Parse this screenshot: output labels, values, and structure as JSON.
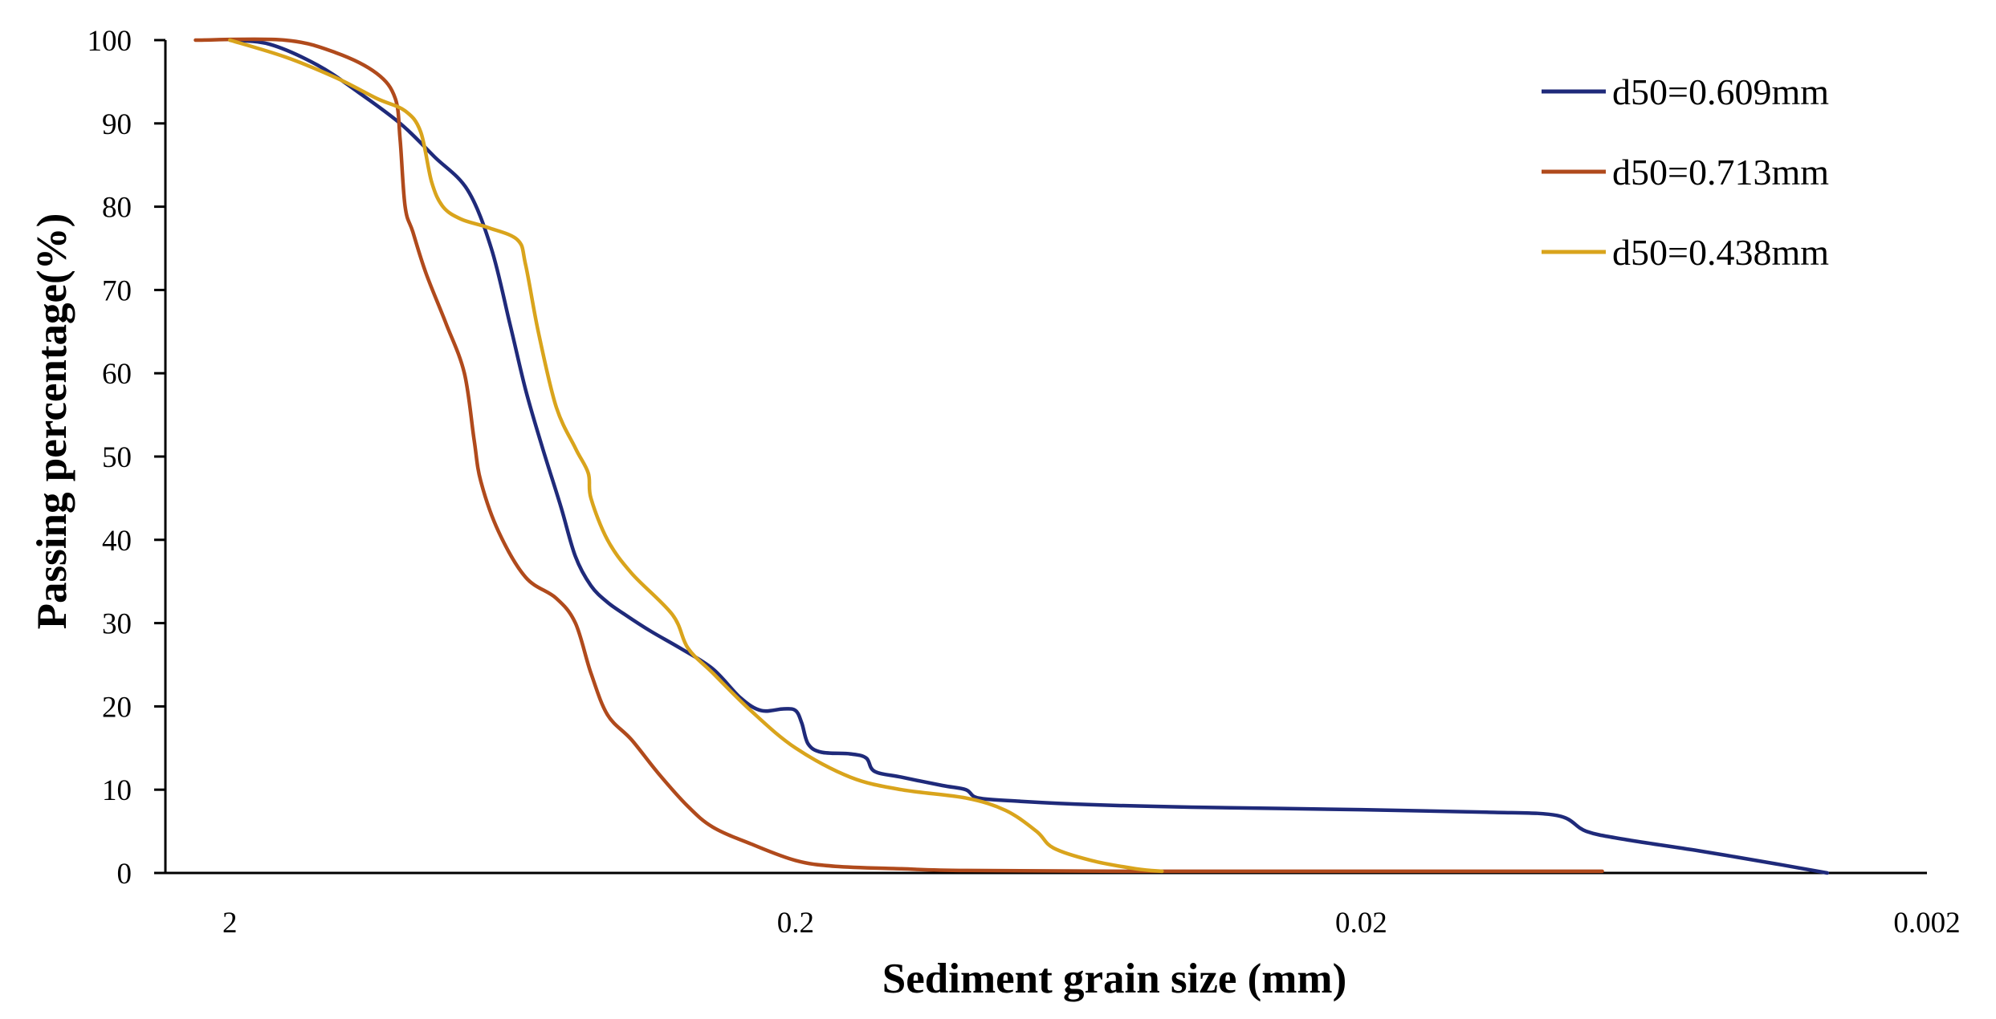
{
  "chart_data": {
    "type": "line",
    "title": "",
    "xlabel": "Sediment grain size (mm)",
    "ylabel": "Passing percentage(%)",
    "x_scale": "log",
    "x_reversed": true,
    "xlim": [
      2.6,
      0.002
    ],
    "ylim": [
      0,
      100
    ],
    "x_ticks": [
      2,
      0.2,
      0.02,
      0.002
    ],
    "x_tick_labels": [
      "2",
      "0.2",
      "0.02",
      "0.002"
    ],
    "y_ticks": [
      0,
      10,
      20,
      30,
      40,
      50,
      60,
      70,
      80,
      90,
      100
    ],
    "y_tick_labels": [
      "0",
      "10",
      "20",
      "30",
      "40",
      "50",
      "60",
      "70",
      "80",
      "90",
      "100"
    ],
    "grid": false,
    "legend_position": "top-right",
    "series": [
      {
        "name": "d50=0.609mm",
        "color": "#1f2a7a",
        "points": [
          [
            2.0,
            100
          ],
          [
            1.7,
            99.5
          ],
          [
            1.4,
            97
          ],
          [
            1.2,
            94
          ],
          [
            1.0,
            90
          ],
          [
            0.87,
            86
          ],
          [
            0.76,
            82
          ],
          [
            0.69,
            75
          ],
          [
            0.64,
            66
          ],
          [
            0.6,
            58
          ],
          [
            0.56,
            51
          ],
          [
            0.52,
            44
          ],
          [
            0.49,
            38
          ],
          [
            0.46,
            34.5
          ],
          [
            0.43,
            32.5
          ],
          [
            0.4,
            31
          ],
          [
            0.36,
            29
          ],
          [
            0.32,
            27
          ],
          [
            0.28,
            24.5
          ],
          [
            0.25,
            21
          ],
          [
            0.23,
            19.5
          ],
          [
            0.21,
            19.7
          ],
          [
            0.2,
            19.5
          ],
          [
            0.195,
            18
          ],
          [
            0.19,
            15.5
          ],
          [
            0.18,
            14.5
          ],
          [
            0.16,
            14.3
          ],
          [
            0.15,
            13.8
          ],
          [
            0.145,
            12.2
          ],
          [
            0.13,
            11.5
          ],
          [
            0.11,
            10.5
          ],
          [
            0.1,
            10
          ],
          [
            0.095,
            9
          ],
          [
            0.08,
            8.6
          ],
          [
            0.06,
            8.2
          ],
          [
            0.04,
            7.9
          ],
          [
            0.02,
            7.6
          ],
          [
            0.012,
            7.3
          ],
          [
            0.009,
            6.9
          ],
          [
            0.008,
            5
          ],
          [
            0.0068,
            4
          ],
          [
            0.005,
            2.6
          ],
          [
            0.0037,
            1.1
          ],
          [
            0.003,
            0
          ]
        ]
      },
      {
        "name": "d50=0.713mm",
        "color": "#b04a1c",
        "points": [
          [
            2.3,
            100
          ],
          [
            1.6,
            100
          ],
          [
            1.3,
            98.5
          ],
          [
            1.1,
            96
          ],
          [
            1.02,
            93
          ],
          [
            1.0,
            88
          ],
          [
            0.98,
            80
          ],
          [
            0.95,
            77
          ],
          [
            0.9,
            72
          ],
          [
            0.83,
            66
          ],
          [
            0.77,
            60
          ],
          [
            0.74,
            52
          ],
          [
            0.72,
            47
          ],
          [
            0.67,
            41
          ],
          [
            0.6,
            35.5
          ],
          [
            0.53,
            33
          ],
          [
            0.49,
            30
          ],
          [
            0.46,
            24
          ],
          [
            0.43,
            19
          ],
          [
            0.39,
            16
          ],
          [
            0.35,
            12
          ],
          [
            0.31,
            8
          ],
          [
            0.28,
            5.5
          ],
          [
            0.24,
            3.5
          ],
          [
            0.2,
            1.5
          ],
          [
            0.17,
            0.8
          ],
          [
            0.13,
            0.5
          ],
          [
            0.1,
            0.3
          ],
          [
            0.05,
            0.2
          ],
          [
            0.02,
            0.2
          ],
          [
            0.0075,
            0.2
          ]
        ]
      },
      {
        "name": "d50=0.438mm",
        "color": "#d9a41c",
        "points": [
          [
            2.0,
            100
          ],
          [
            1.6,
            98
          ],
          [
            1.3,
            95.5
          ],
          [
            1.1,
            93
          ],
          [
            0.98,
            91.5
          ],
          [
            0.92,
            89
          ],
          [
            0.88,
            83
          ],
          [
            0.84,
            80
          ],
          [
            0.78,
            78.5
          ],
          [
            0.7,
            77.5
          ],
          [
            0.62,
            76
          ],
          [
            0.6,
            73
          ],
          [
            0.57,
            65
          ],
          [
            0.53,
            56
          ],
          [
            0.49,
            51
          ],
          [
            0.465,
            48
          ],
          [
            0.46,
            45
          ],
          [
            0.43,
            40
          ],
          [
            0.39,
            36
          ],
          [
            0.33,
            31
          ],
          [
            0.31,
            27
          ],
          [
            0.28,
            24
          ],
          [
            0.24,
            19.5
          ],
          [
            0.2,
            15
          ],
          [
            0.16,
            11.5
          ],
          [
            0.13,
            10
          ],
          [
            0.1,
            9
          ],
          [
            0.085,
            7.5
          ],
          [
            0.075,
            5
          ],
          [
            0.07,
            3
          ],
          [
            0.06,
            1.5
          ],
          [
            0.05,
            0.5
          ],
          [
            0.045,
            0.2
          ]
        ]
      }
    ]
  }
}
